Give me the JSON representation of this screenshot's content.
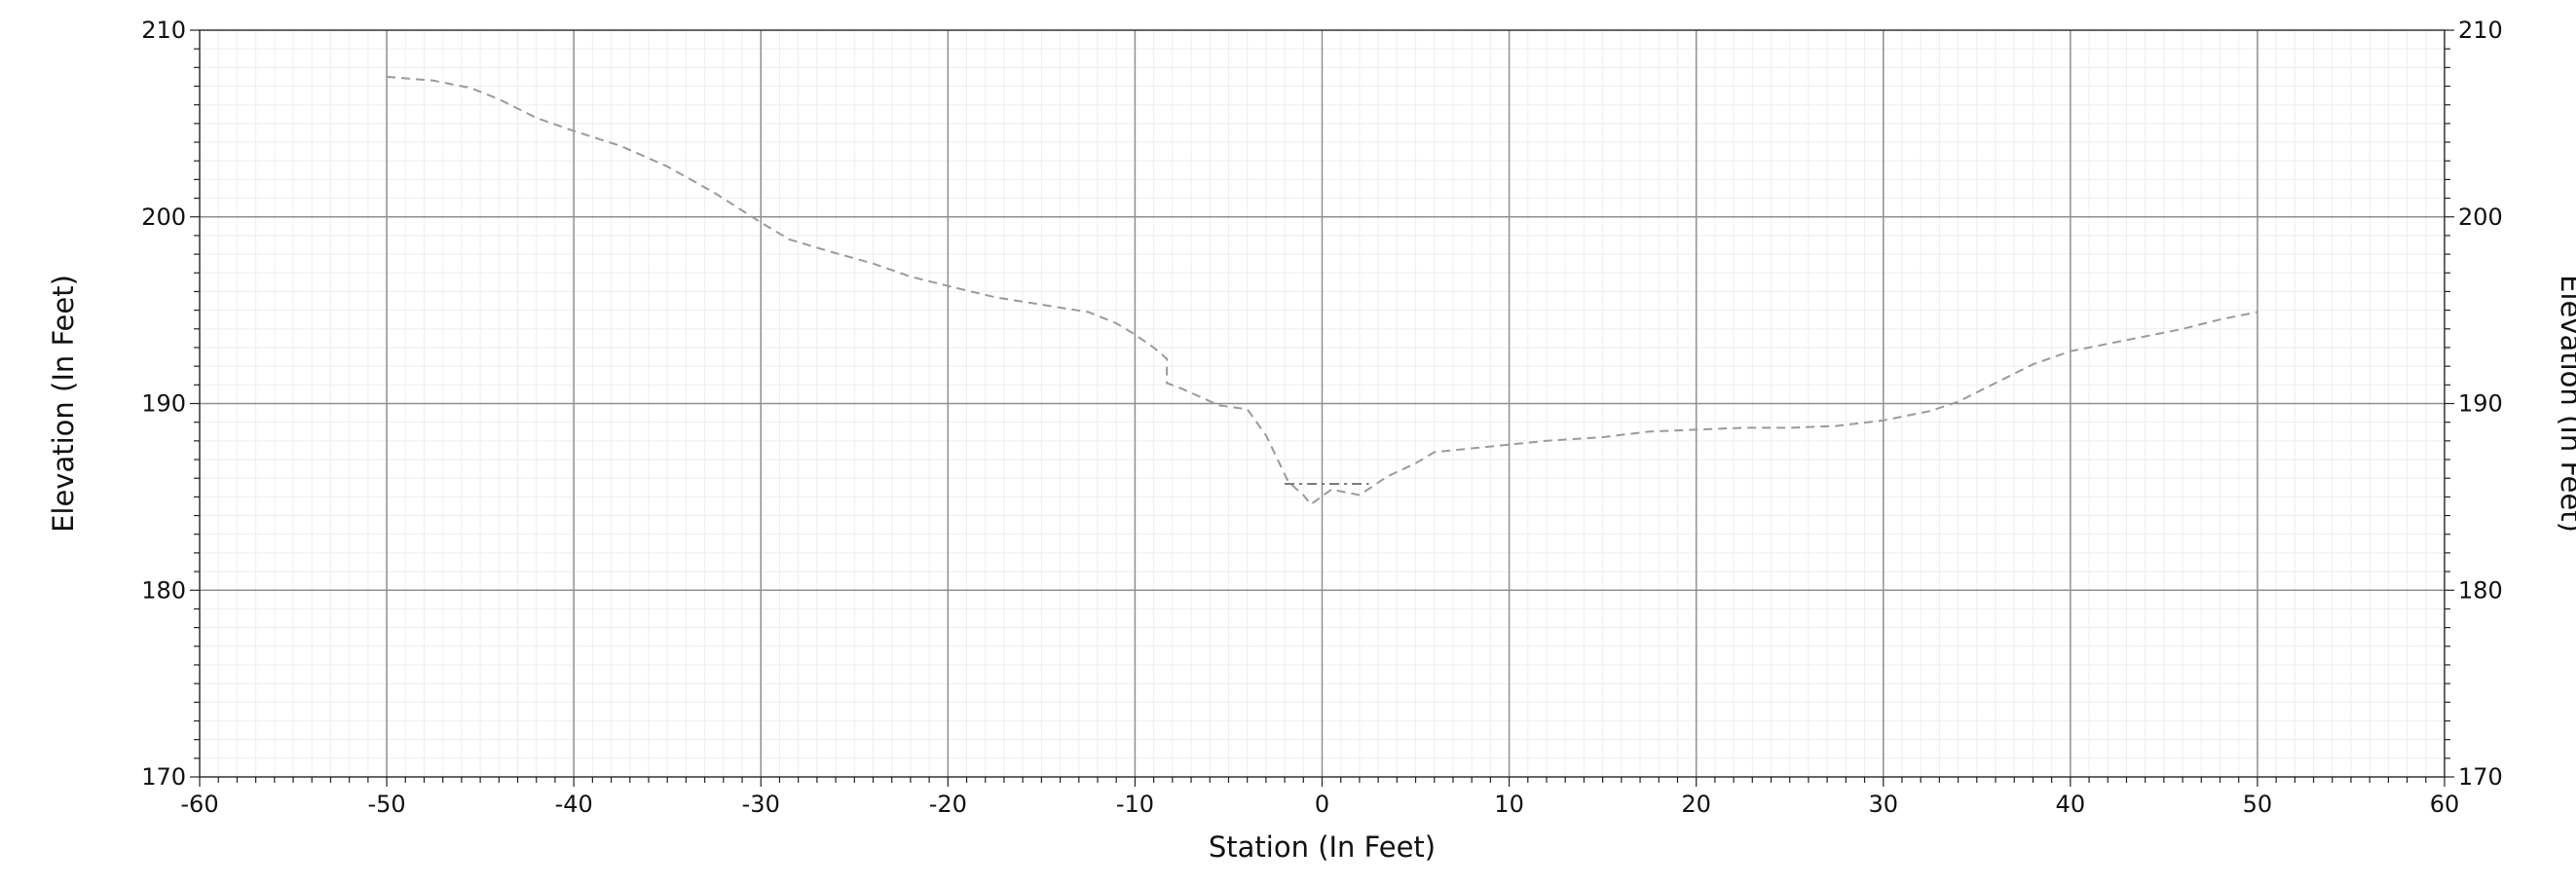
{
  "chart_data": {
    "type": "line",
    "title": "",
    "xlabel": "Station (In Feet)",
    "ylabel": "Elevation (In Feet)",
    "ylabel_right": "Elevation (In Feet)",
    "xlim": [
      -60,
      60
    ],
    "ylim": [
      170,
      210
    ],
    "x_ticks": [
      -60,
      -50,
      -40,
      -30,
      -20,
      -10,
      0,
      10,
      20,
      30,
      40,
      50,
      60
    ],
    "y_ticks": [
      170,
      180,
      190,
      200,
      210
    ],
    "grid": true,
    "legend": "none",
    "series": [
      {
        "style": "dashed",
        "color": "#9a9a9a",
        "points": [
          [
            -50,
            207.5
          ],
          [
            -47.5,
            207.3
          ],
          [
            -45.5,
            206.9
          ],
          [
            -44,
            206.3
          ],
          [
            -42,
            205.3
          ],
          [
            -40,
            204.6
          ],
          [
            -37.5,
            203.8
          ],
          [
            -35,
            202.7
          ],
          [
            -32.5,
            201.3
          ],
          [
            -30,
            199.7
          ],
          [
            -28.5,
            198.8
          ],
          [
            -26.5,
            198.2
          ],
          [
            -24,
            197.5
          ],
          [
            -22,
            196.8
          ],
          [
            -20,
            196.3
          ],
          [
            -17.5,
            195.7
          ],
          [
            -15,
            195.3
          ],
          [
            -12.5,
            194.9
          ],
          [
            -11,
            194.3
          ],
          [
            -10,
            193.7
          ],
          [
            -9,
            193.0
          ],
          [
            -8.3,
            192.4
          ],
          [
            -8.3,
            191.1
          ],
          [
            -7.5,
            190.8
          ],
          [
            -5.5,
            189.9
          ],
          [
            -4,
            189.7
          ],
          [
            -3,
            188.3
          ],
          [
            -1.8,
            185.8
          ],
          [
            -1,
            185.1
          ],
          [
            -0.6,
            184.6
          ],
          [
            0.5,
            185.4
          ],
          [
            2,
            185.1
          ],
          [
            3.5,
            186.1
          ],
          [
            5,
            186.8
          ],
          [
            6,
            187.4
          ],
          [
            8,
            187.6
          ],
          [
            10,
            187.8
          ],
          [
            12,
            188.0
          ],
          [
            15,
            188.2
          ],
          [
            17.5,
            188.5
          ],
          [
            20,
            188.6
          ],
          [
            22.5,
            188.7
          ],
          [
            25,
            188.7
          ],
          [
            27.5,
            188.8
          ],
          [
            30,
            189.1
          ],
          [
            32.5,
            189.6
          ],
          [
            34,
            190.1
          ],
          [
            36,
            191.1
          ],
          [
            38,
            192.1
          ],
          [
            40,
            192.8
          ],
          [
            42,
            193.2
          ],
          [
            44,
            193.6
          ],
          [
            46,
            194.0
          ],
          [
            48,
            194.5
          ],
          [
            50,
            194.9
          ]
        ]
      },
      {
        "style": "dash-dot",
        "color": "#7a7a7a",
        "points": [
          [
            -2,
            185.7
          ],
          [
            2.5,
            185.7
          ]
        ]
      }
    ]
  }
}
